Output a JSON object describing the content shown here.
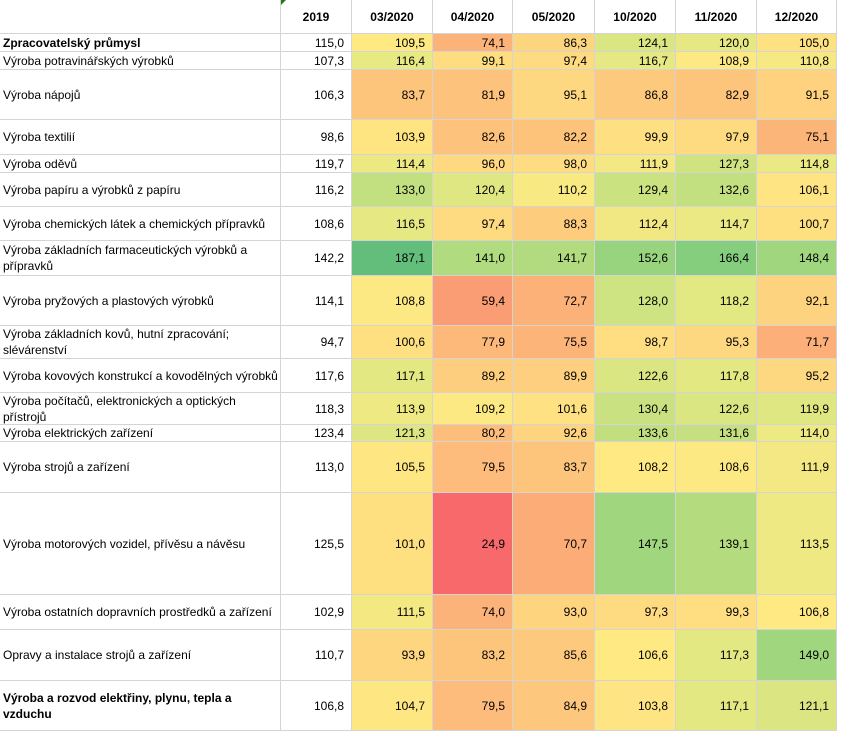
{
  "columns": [
    "",
    "2019",
    "03/2020",
    "04/2020",
    "05/2020",
    "10/2020",
    "11/2020",
    "12/2020"
  ],
  "rows": [
    {
      "label": "Zpracovatelský průmysl",
      "bold": true,
      "values": [
        "115,0",
        "109,5",
        "74,1",
        "86,3",
        "124,1",
        "120,0",
        "105,0"
      ],
      "colors": [
        "#ffffff",
        "#fee982",
        "#fcb379",
        "#fed57f",
        "#d9e681",
        "#e5e883",
        "#fee282"
      ]
    },
    {
      "label": "Výroba potravinářských výrobků",
      "bold": false,
      "values": [
        "107,3",
        "116,4",
        "99,1",
        "97,4",
        "116,7",
        "108,9",
        "110,8"
      ],
      "colors": [
        "#ffffff",
        "#e7e983",
        "#fedd81",
        "#feda80",
        "#e6e983",
        "#fce983",
        "#f6e983"
      ]
    },
    {
      "label": "Výroba nápojů",
      "bold": false,
      "values": [
        "106,3",
        "83,7",
        "81,9",
        "95,1",
        "86,8",
        "82,9",
        "91,5"
      ],
      "colors": [
        "#ffffff",
        "#fdc57c",
        "#fdc27b",
        "#fed880",
        "#fdca7d",
        "#fdc47c",
        "#fed27f"
      ]
    },
    {
      "label": "Výroba textilií",
      "bold": false,
      "values": [
        "98,6",
        "103,9",
        "82,6",
        "82,2",
        "99,9",
        "97,9",
        "75,1"
      ],
      "colors": [
        "#ffffff",
        "#fee582",
        "#fdc37c",
        "#fdc37b",
        "#fedf81",
        "#fedb80",
        "#fcb579"
      ]
    },
    {
      "label": "Výroba oděvů",
      "bold": false,
      "values": [
        "119,7",
        "114,4",
        "96,0",
        "98,0",
        "111,9",
        "127,3",
        "114,8"
      ],
      "colors": [
        "#ffffff",
        "#ece983",
        "#fed980",
        "#fedc81",
        "#f3e883",
        "#cfe381",
        "#ebe983"
      ]
    },
    {
      "label": "Výroba papíru a výrobků z papíru",
      "bold": false,
      "values": [
        "116,2",
        "133,0",
        "120,4",
        "110,2",
        "129,4",
        "132,6",
        "106,1"
      ],
      "colors": [
        "#ffffff",
        "#c2e080",
        "#dee782",
        "#f8e983",
        "#cbe281",
        "#c3e080",
        "#fee483"
      ]
    },
    {
      "label": "Výroba chemických látek a chemických přípravků",
      "bold": false,
      "values": [
        "108,6",
        "116,5",
        "97,4",
        "88,3",
        "112,4",
        "114,7",
        "100,7"
      ],
      "colors": [
        "#ffffff",
        "#e6e983",
        "#feda80",
        "#fdcc7d",
        "#f1e883",
        "#ebe983",
        "#fee081"
      ]
    },
    {
      "label": "Výroba základních farmaceutických výrobků a přípravků",
      "bold": false,
      "values": [
        "142,2",
        "187,1",
        "141,0",
        "141,7",
        "152,6",
        "166,4",
        "148,4"
      ],
      "colors": [
        "#ffffff",
        "#63be7b",
        "#b0db7f",
        "#b2db7f",
        "#98d47e",
        "#84ce7d",
        "#a0d67e"
      ]
    },
    {
      "label": "Výroba pryžových a plastových výrobků",
      "bold": false,
      "values": [
        "114,1",
        "108,8",
        "59,4",
        "72,7",
        "128,0",
        "118,2",
        "92,1"
      ],
      "colors": [
        "#ffffff",
        "#fde983",
        "#fa9d74",
        "#fcb178",
        "#cee381",
        "#e2e882",
        "#fed37f"
      ]
    },
    {
      "label": "Výroba základních kovů, hutní zpracování; slévárenství",
      "bold": false,
      "values": [
        "94,7",
        "100,6",
        "77,9",
        "75,5",
        "98,7",
        "95,3",
        "71,7"
      ],
      "colors": [
        "#ffffff",
        "#fee081",
        "#fdb97a",
        "#fcb479",
        "#fede81",
        "#fed880",
        "#fcaf78"
      ]
    },
    {
      "label": "Výroba kovových konstrukcí a kovodělných výrobků",
      "bold": false,
      "values": [
        "117,6",
        "117,1",
        "89,2",
        "89,9",
        "122,6",
        "117,8",
        "95,2"
      ],
      "colors": [
        "#ffffff",
        "#e4e882",
        "#fdce7e",
        "#fdcf7e",
        "#dae682",
        "#e3e882",
        "#fed880"
      ]
    },
    {
      "label": "Výroba počítačů, elektronických a optických přístrojů",
      "bold": false,
      "values": [
        "118,3",
        "113,9",
        "109,2",
        "101,6",
        "130,4",
        "122,6",
        "119,9"
      ],
      "colors": [
        "#ffffff",
        "#eee983",
        "#fde983",
        "#fee182",
        "#c9e181",
        "#dae682",
        "#dfe782"
      ]
    },
    {
      "label": "Výroba elektrických  zařízení",
      "bold": false,
      "values": [
        "123,4",
        "121,3",
        "80,2",
        "92,6",
        "133,6",
        "131,6",
        "114,0"
      ],
      "colors": [
        "#ffffff",
        "#dde682",
        "#fdbe7b",
        "#fed47f",
        "#c2df80",
        "#c6e081",
        "#ede983"
      ]
    },
    {
      "label": "Výroba strojů a  zařízení",
      "bold": false,
      "values": [
        "113,0",
        "105,5",
        "79,5",
        "83,7",
        "108,2",
        "108,6",
        "111,9"
      ],
      "colors": [
        "#ffffff",
        "#fee782",
        "#fdbc7b",
        "#fdc57c",
        "#fee983",
        "#fde983",
        "#f3e883"
      ]
    },
    {
      "label": "Výroba motorových vozidel, přívěsu a návěsu",
      "bold": false,
      "values": [
        "125,5",
        "101,0",
        "24,9",
        "70,7",
        "147,5",
        "139,1",
        "113,5"
      ],
      "colors": [
        "#ffffff",
        "#fee081",
        "#f8696b",
        "#fbac77",
        "#a0d67e",
        "#b4dc7f",
        "#efe983"
      ]
    },
    {
      "label": "Výroba ostatních dopravních prostředků a zařízení",
      "bold": false,
      "values": [
        "102,9",
        "111,5",
        "74,0",
        "93,0",
        "97,3",
        "99,3",
        "106,8"
      ],
      "colors": [
        "#ffffff",
        "#f4e883",
        "#fcb379",
        "#fed47f",
        "#feda80",
        "#fede81",
        "#fee983"
      ]
    },
    {
      "label": "Opravy a instalace strojů a zařízení",
      "bold": false,
      "values": [
        "110,7",
        "93,9",
        "83,2",
        "85,6",
        "106,6",
        "117,3",
        "149,0"
      ],
      "colors": [
        "#ffffff",
        "#fed680",
        "#fdc47c",
        "#fdc97d",
        "#fee983",
        "#e3e882",
        "#9fd67e"
      ]
    },
    {
      "label": "Výroba a rozvod elektřiny, plynu, tepla a vzduchu",
      "bold": true,
      "values": [
        "106,8",
        "104,7",
        "79,5",
        "84,9",
        "103,8",
        "117,1",
        "121,1"
      ],
      "colors": [
        "#ffffff",
        "#fee683",
        "#fdbc7b",
        "#fdc87d",
        "#fee482",
        "#e4e882",
        "#dbe682"
      ]
    }
  ]
}
